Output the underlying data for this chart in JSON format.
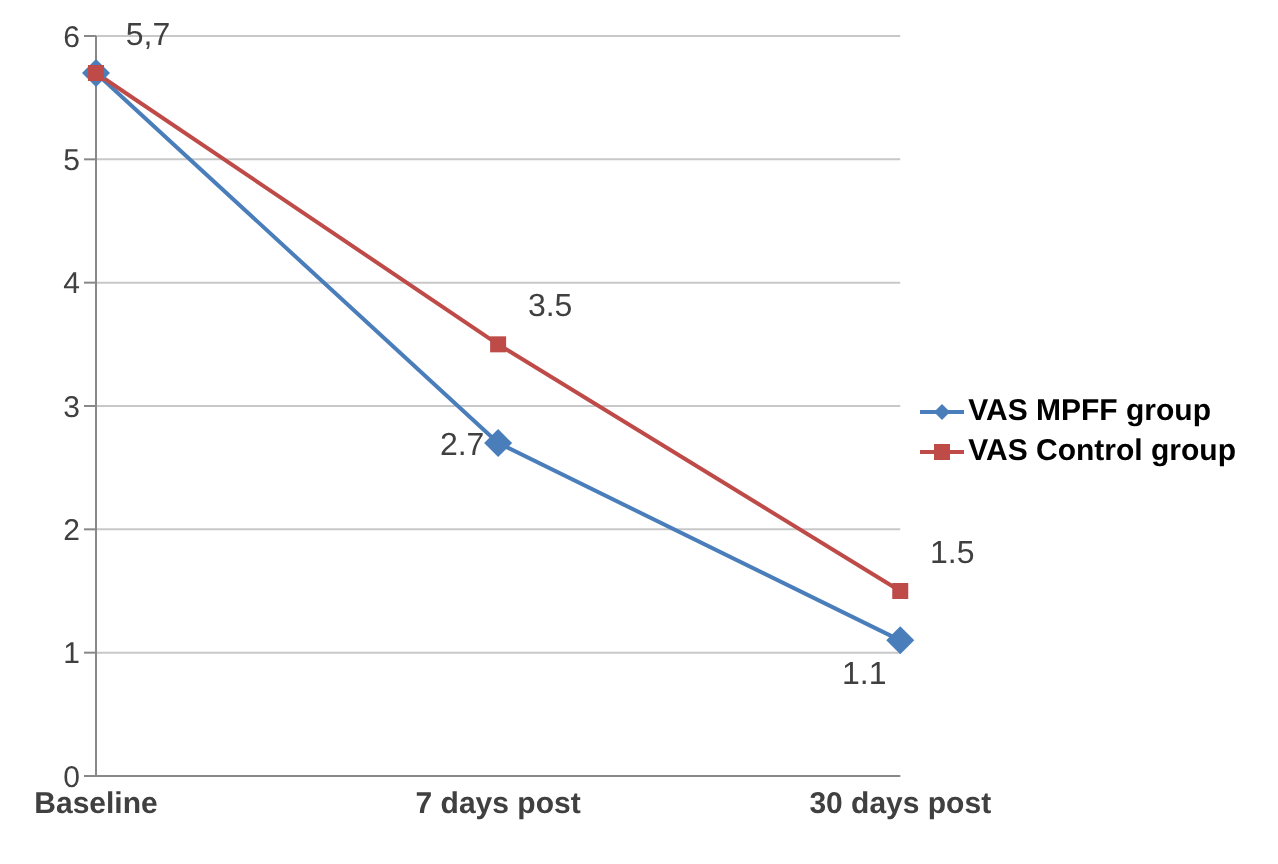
{
  "chart_data": {
    "type": "line",
    "categories": [
      "Baseline",
      "7 days post",
      "30 days post"
    ],
    "series": [
      {
        "name": "VAS MPFF group",
        "color": "#4a7ebb",
        "marker": "diamond",
        "values": [
          5.7,
          2.7,
          1.1
        ],
        "value_labels": [
          null,
          "2.7",
          "1.1"
        ]
      },
      {
        "name": "VAS Control group",
        "color": "#be4b48",
        "marker": "square",
        "values": [
          5.7,
          3.5,
          1.5
        ],
        "value_labels": [
          "5,7",
          "3.5",
          "1.5"
        ]
      }
    ],
    "ylim": [
      0,
      6
    ],
    "yticks": [
      0,
      1,
      2,
      3,
      4,
      5,
      6
    ],
    "grid": "y",
    "legend": "right"
  }
}
